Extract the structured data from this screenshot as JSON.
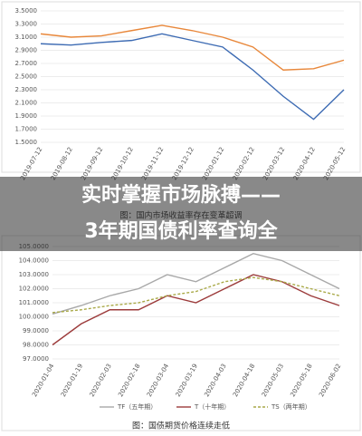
{
  "chart_data": [
    {
      "type": "line",
      "categories": [
        "2019-07-12",
        "2019-08-12",
        "2019-09-12",
        "2019-10-12",
        "2019-11-12",
        "2019-12-12",
        "2020-01-12",
        "2020-02-12",
        "2020-03-12",
        "2020-04-12",
        "2020-05-12"
      ],
      "series": [
        {
          "name": "",
          "color": "#e8873a",
          "values": [
            3.15,
            3.1,
            3.12,
            3.2,
            3.28,
            3.2,
            3.1,
            2.95,
            2.6,
            2.62,
            2.75
          ]
        },
        {
          "name": "",
          "color": "#3d6bb3",
          "values": [
            3.0,
            2.98,
            3.02,
            3.05,
            3.15,
            3.05,
            2.95,
            2.6,
            2.2,
            1.85,
            2.3
          ]
        }
      ],
      "ylim": [
        1.5,
        3.5
      ],
      "yticks": [
        {
          "value": 1.5,
          "label": "1.5000"
        },
        {
          "value": 1.7,
          "label": "1.7000"
        },
        {
          "value": 1.9,
          "label": "1.9000"
        },
        {
          "value": 2.1,
          "label": "2.1000"
        },
        {
          "value": 2.3,
          "label": "2.3000"
        },
        {
          "value": 2.5,
          "label": "2.5000"
        },
        {
          "value": 2.7,
          "label": "2.7000"
        },
        {
          "value": 2.9,
          "label": "2.9000"
        },
        {
          "value": 3.1,
          "label": "3.1000"
        },
        {
          "value": 3.3,
          "label": "3.3000"
        },
        {
          "value": 3.5,
          "label": "3.5000"
        }
      ],
      "grid": true,
      "caption": "图：国内市场收益率存在变革超调"
    },
    {
      "type": "line",
      "categories": [
        "2020-01-04",
        "2020-01-19",
        "2020-02-03",
        "2020-02-18",
        "2020-03-04",
        "2020-03-19",
        "2020-04-03",
        "2020-04-18",
        "2020-05-03",
        "2020-05-18",
        "2020-06-02"
      ],
      "series": [
        {
          "name": "TF（五年期）",
          "color": "#a8a8a8",
          "values": [
            100.2,
            100.8,
            101.5,
            102.0,
            103.0,
            102.5,
            103.5,
            104.5,
            104.0,
            103.0,
            102.0
          ]
        },
        {
          "name": "T（十年期）",
          "color": "#9c3b3b",
          "values": [
            98.0,
            99.5,
            100.5,
            100.5,
            101.5,
            101.0,
            102.0,
            103.0,
            102.5,
            101.5,
            100.8
          ]
        },
        {
          "name": "TS（两年期）",
          "color": "#a9a948",
          "dash": true,
          "values": [
            100.3,
            100.5,
            100.8,
            101.0,
            101.5,
            101.8,
            102.5,
            102.8,
            102.5,
            102.0,
            101.5
          ]
        }
      ],
      "ylim": [
        97,
        105
      ],
      "yticks": [
        {
          "value": 97,
          "label": "97.0000"
        },
        {
          "value": 98,
          "label": "98.0000"
        },
        {
          "value": 99,
          "label": "99.0000"
        },
        {
          "value": 100,
          "label": "100.0000"
        },
        {
          "value": 101,
          "label": "101.0000"
        },
        {
          "value": 102,
          "label": "102.0000"
        },
        {
          "value": 103,
          "label": "103.0000"
        },
        {
          "value": 104,
          "label": "104.0000"
        },
        {
          "value": 105,
          "label": "105.0000"
        }
      ],
      "grid": true,
      "caption": "图：国债期货价格连续走低"
    }
  ],
  "overlay_title": [
    "实时掌握市场脉搏——",
    "3年期国债利率查询全"
  ]
}
